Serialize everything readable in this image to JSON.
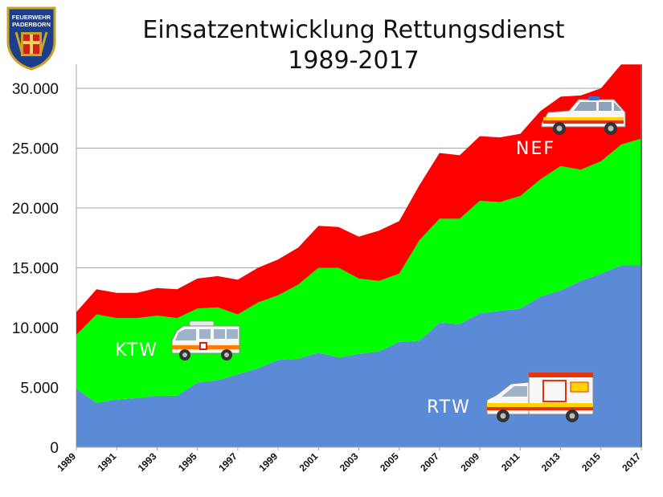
{
  "badge": {
    "line1": "FEUERWEHR",
    "line2": "PADERBORN"
  },
  "colors": {
    "rtw": "#5b8bd6",
    "ktw": "#00ff00",
    "nef": "#ff0000",
    "grid": "#a6a6a6"
  },
  "chart_data": {
    "type": "area",
    "stacked": true,
    "title": "Einsatzentwicklung Rettungsdienst",
    "subtitle": "1989-2017",
    "xlabel": "",
    "ylabel": "",
    "ylim": [
      0,
      32000
    ],
    "yticks": [
      0,
      5000,
      10000,
      15000,
      20000,
      25000,
      30000
    ],
    "ytick_labels": [
      "0",
      "5.000",
      "10.000",
      "15.000",
      "20.000",
      "25.000",
      "30.000"
    ],
    "xtick_labels": [
      "1989",
      "1991",
      "1993",
      "1995",
      "1997",
      "1999",
      "2001",
      "2003",
      "2005",
      "2007",
      "2009",
      "2011",
      "2013",
      "2015",
      "2017"
    ],
    "grid": true,
    "x": [
      1989,
      1990,
      1991,
      1992,
      1993,
      1994,
      1995,
      1996,
      1997,
      1998,
      1999,
      2000,
      2001,
      2002,
      2003,
      2004,
      2005,
      2006,
      2007,
      2008,
      2009,
      2010,
      2011,
      2012,
      2013,
      2014,
      2015,
      2016,
      2017
    ],
    "series": [
      {
        "name": "RTW",
        "values": [
          4900,
          3700,
          4000,
          4100,
          4300,
          4300,
          5400,
          5600,
          6100,
          6600,
          7300,
          7400,
          7900,
          7500,
          7800,
          8000,
          8800,
          8900,
          10400,
          10300,
          11200,
          11400,
          11600,
          12600,
          13100,
          13900,
          14500,
          15200,
          15200
        ]
      },
      {
        "name": "KTW",
        "values": [
          4500,
          7400,
          6800,
          6700,
          6700,
          6500,
          6200,
          6100,
          5000,
          5500,
          5400,
          6200,
          7100,
          7500,
          6300,
          5900,
          5700,
          8400,
          8700,
          8800,
          9400,
          9100,
          9400,
          9800,
          10400,
          9300,
          9400,
          10100,
          10600
        ]
      },
      {
        "name": "NEF",
        "values": [
          1900,
          2100,
          2100,
          2100,
          2300,
          2400,
          2500,
          2600,
          2900,
          2900,
          3000,
          3100,
          3500,
          3400,
          3500,
          4200,
          4400,
          4600,
          5500,
          5300,
          5400,
          5400,
          5200,
          5700,
          5800,
          6200,
          6100,
          6700,
          6200
        ]
      }
    ]
  }
}
